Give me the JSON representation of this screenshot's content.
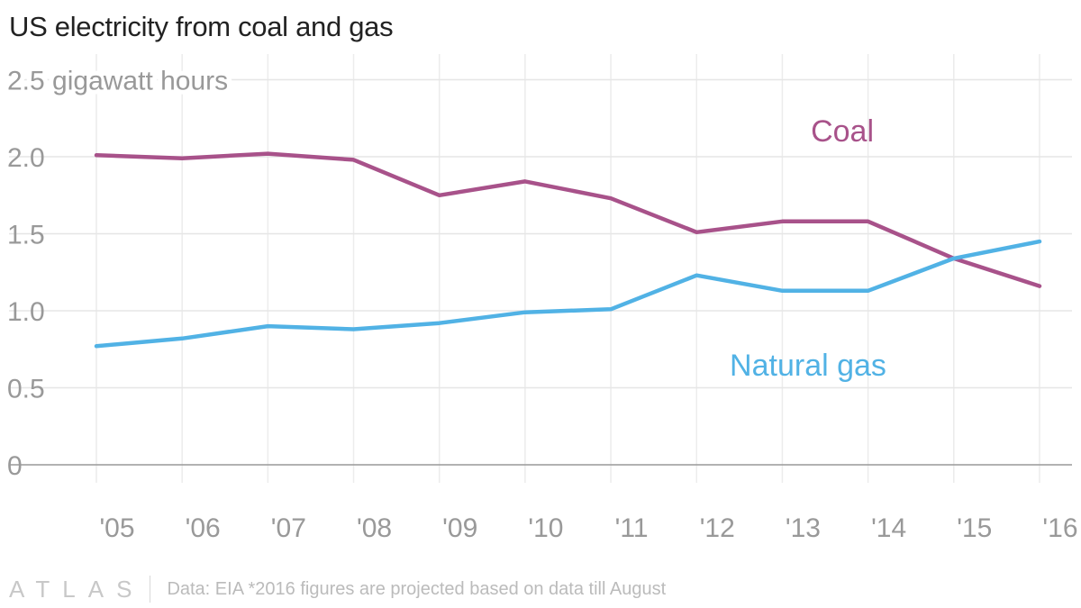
{
  "footer": {
    "logo": "ATLAS",
    "note": "Data: EIA *2016 figures are projected based on data till August"
  },
  "chart_data": {
    "type": "line",
    "title": "US electricity from coal and gas",
    "ylabel": "gigawatt hours",
    "xlabel": "",
    "x": [
      2005,
      2006,
      2007,
      2008,
      2009,
      2010,
      2011,
      2012,
      2013,
      2014,
      2015,
      2016
    ],
    "x_tick_labels": [
      "'05",
      "'06",
      "'07",
      "'08",
      "'09",
      "'10",
      "'11",
      "'12",
      "'13",
      "'14",
      "'15",
      "'16"
    ],
    "y_tick_labels": [
      "0",
      "0.5",
      "1.0",
      "1.5",
      "2.0",
      "2.5 gigawatt hours"
    ],
    "y_ticks": [
      0,
      0.5,
      1.0,
      1.5,
      2.0,
      2.5
    ],
    "ylim": [
      0,
      2.5
    ],
    "grid": true,
    "series": [
      {
        "name": "Coal",
        "color": "#a8528a",
        "label_pos": [
          2013.7,
          2.1
        ],
        "values": [
          2.01,
          1.99,
          2.02,
          1.98,
          1.75,
          1.84,
          1.73,
          1.51,
          1.58,
          1.58,
          1.34,
          1.16
        ]
      },
      {
        "name": "Natural gas",
        "color": "#51b2e5",
        "label_pos": [
          2013.3,
          0.58
        ],
        "values": [
          0.77,
          0.82,
          0.9,
          0.88,
          0.92,
          0.99,
          1.01,
          1.23,
          1.13,
          1.13,
          1.34,
          1.45
        ]
      }
    ]
  }
}
